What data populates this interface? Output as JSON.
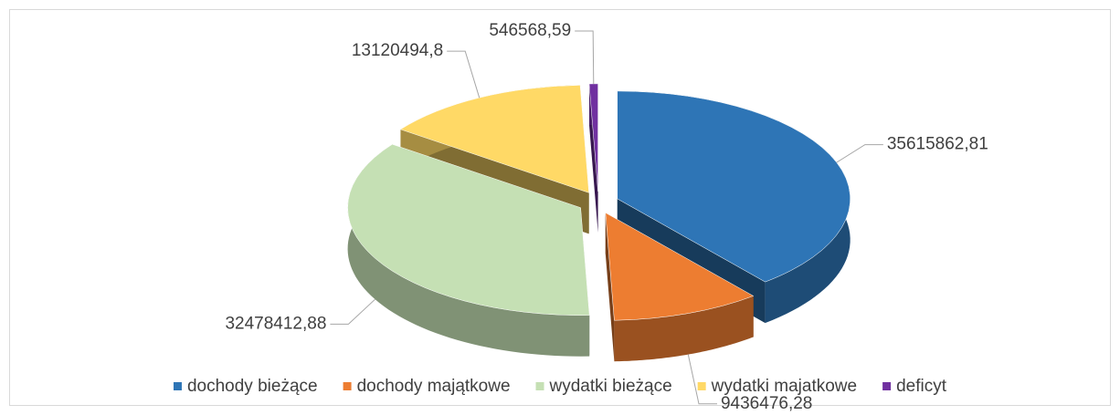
{
  "chart_data": {
    "type": "pie3d",
    "categories": [
      "dochody bieżące",
      "dochody majątkowe",
      "wydatki bieżące",
      "wydatki majatkowe",
      "deficyt"
    ],
    "values": [
      35615862.81,
      9436476.28,
      32478412.88,
      13120494.8,
      546568.59
    ],
    "value_labels": [
      "35615862,81",
      "9436476,28",
      "32478412,88",
      "13120494,8",
      "546568,59"
    ],
    "colors": [
      "#2e75b6",
      "#ed7d31",
      "#c5e0b4",
      "#ffd966",
      "#7030a0"
    ],
    "legend": "bottom"
  }
}
